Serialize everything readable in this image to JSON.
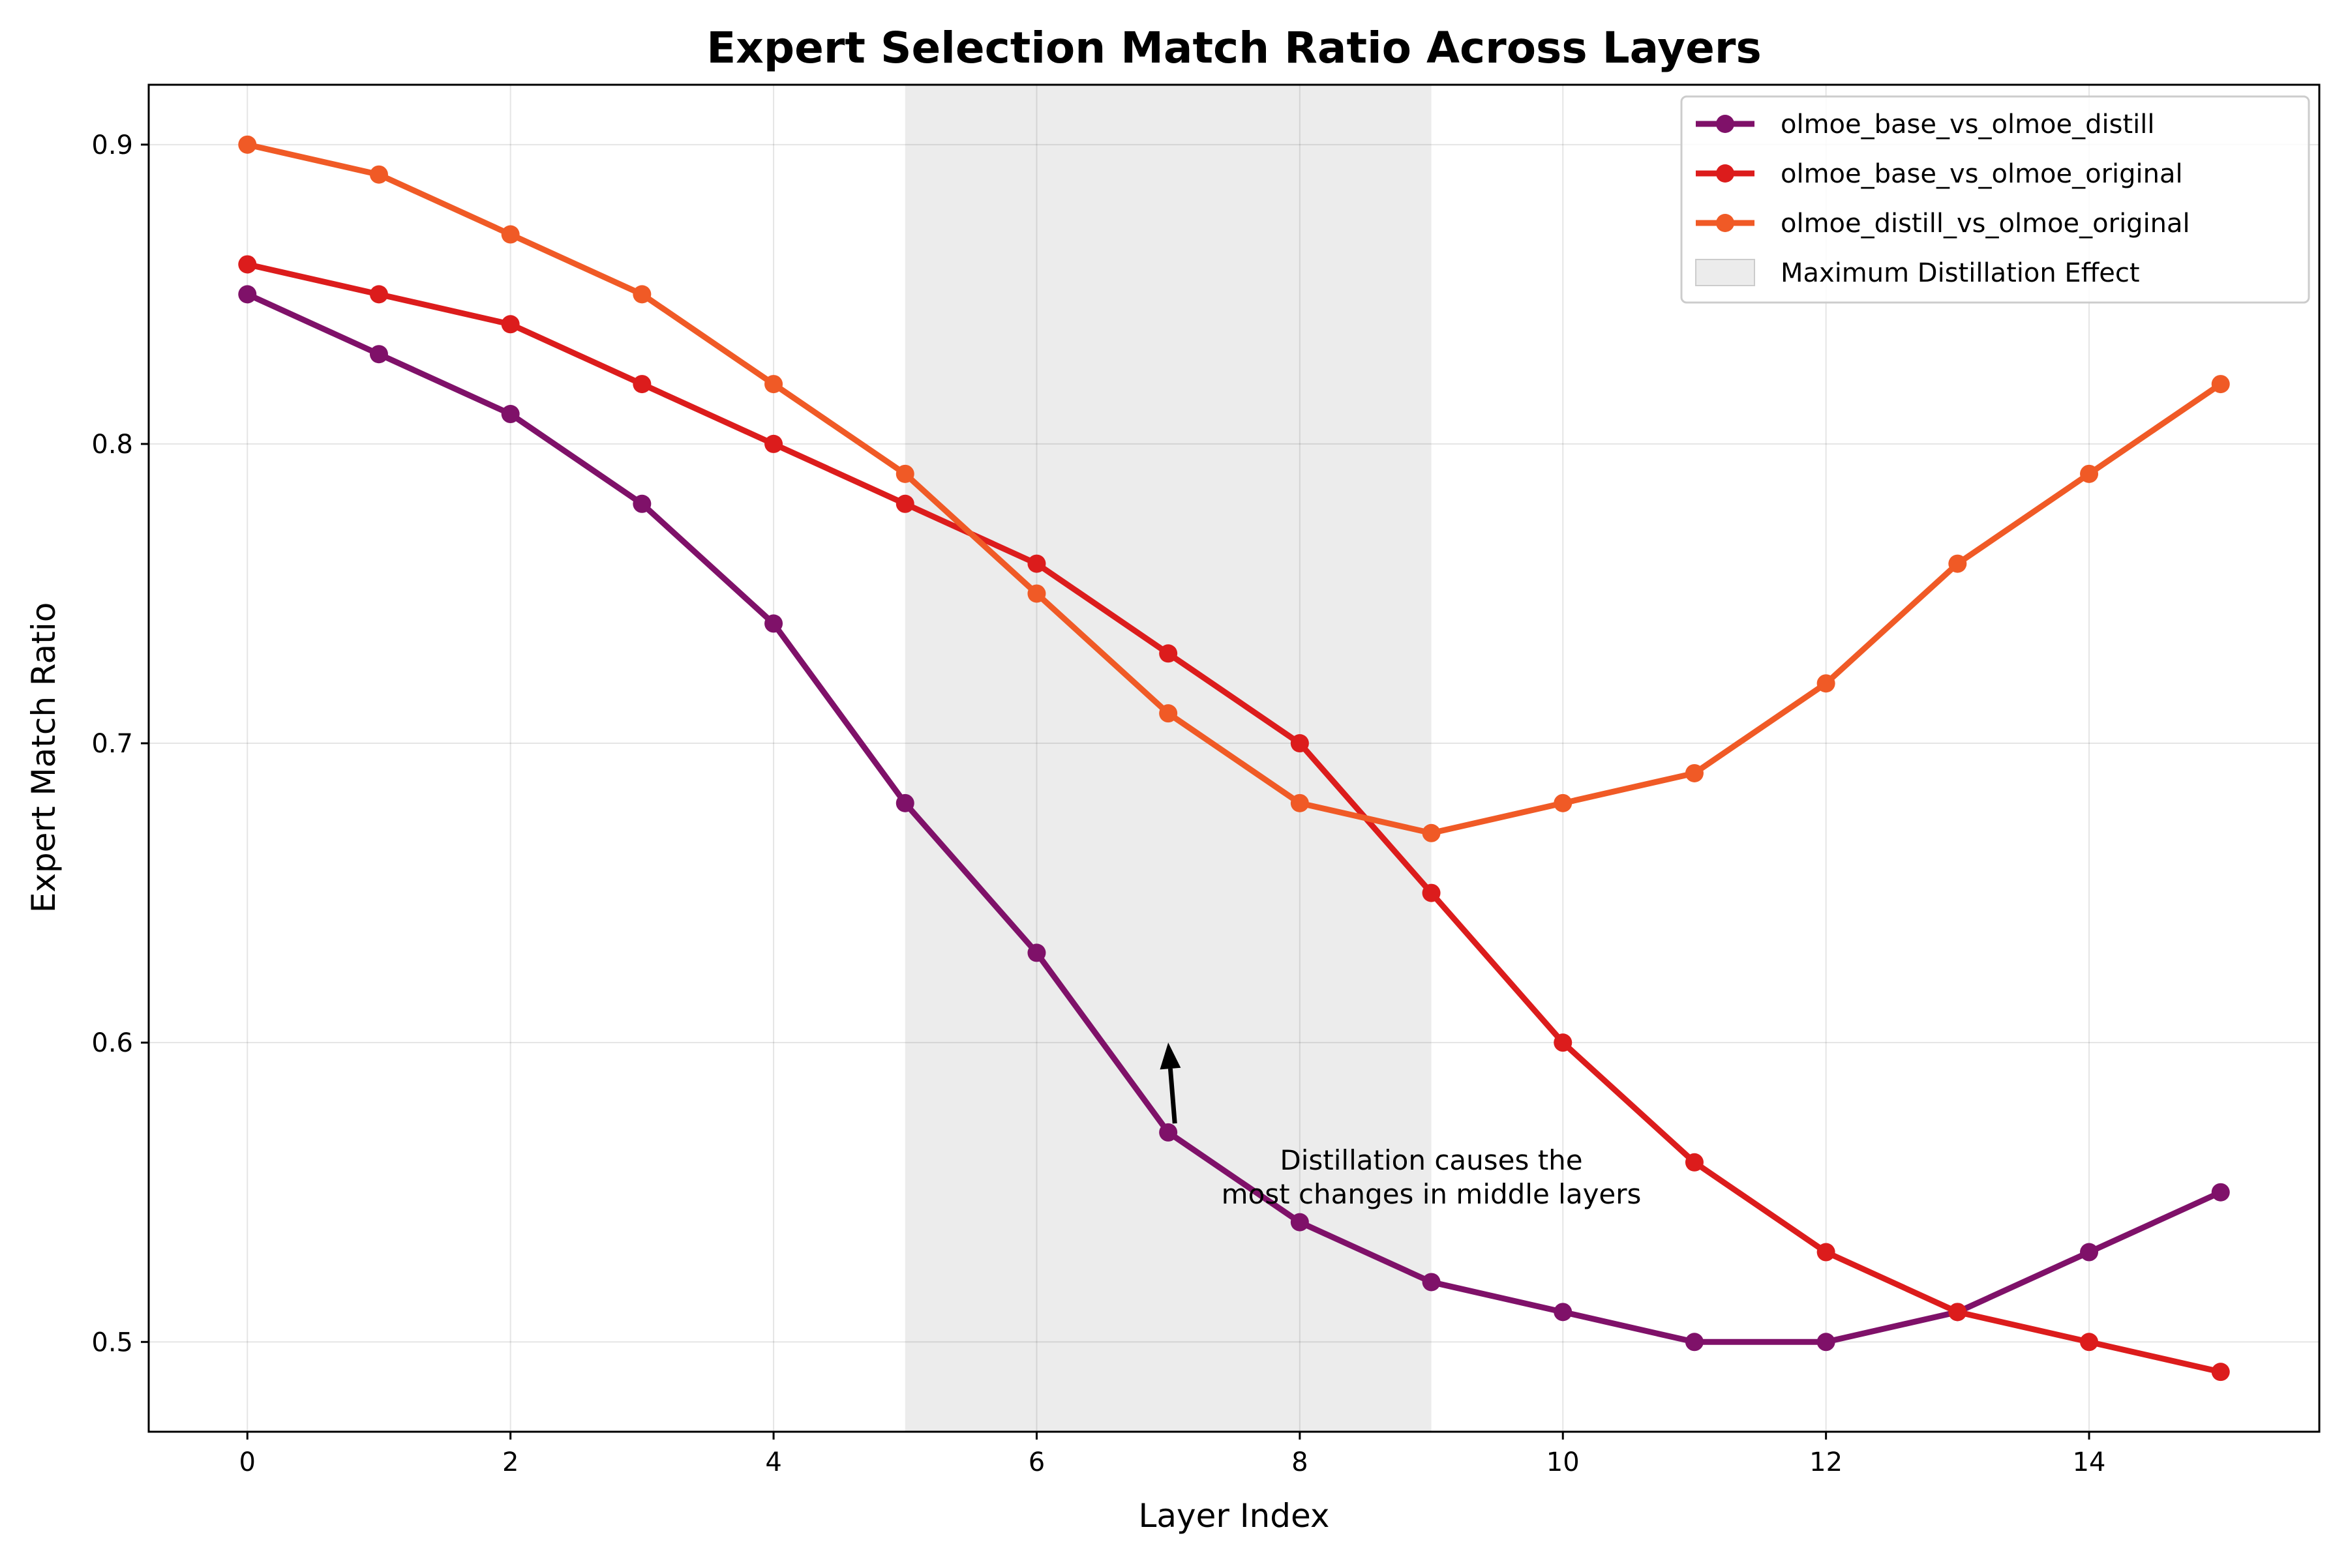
{
  "chart_data": {
    "type": "line",
    "title": "Expert Selection Match Ratio Across Layers",
    "xlabel": "Layer Index",
    "ylabel": "Expert Match Ratio",
    "x": [
      0,
      1,
      2,
      3,
      4,
      5,
      6,
      7,
      8,
      9,
      10,
      11,
      12,
      13,
      14,
      15
    ],
    "xlim": [
      -0.75,
      15.75
    ],
    "ylim": [
      0.47,
      0.92
    ],
    "xticks": [
      0,
      2,
      4,
      6,
      8,
      10,
      12,
      14
    ],
    "yticks": [
      0.5,
      0.6,
      0.7,
      0.8,
      0.9
    ],
    "ytick_labels": [
      "0.5",
      "0.6",
      "0.7",
      "0.8",
      "0.9"
    ],
    "grid": true,
    "legend_position": "top-right",
    "series": [
      {
        "name": "olmoe_base_vs_olmoe_distill",
        "color": "#7f1169",
        "values": [
          0.85,
          0.83,
          0.81,
          0.78,
          0.74,
          0.68,
          0.63,
          0.57,
          0.54,
          0.52,
          0.51,
          0.5,
          0.5,
          0.51,
          0.53,
          0.55
        ]
      },
      {
        "name": "olmoe_base_vs_olmoe_original",
        "color": "#dc1c1c",
        "values": [
          0.86,
          0.85,
          0.84,
          0.82,
          0.8,
          0.78,
          0.76,
          0.73,
          0.7,
          0.65,
          0.6,
          0.56,
          0.53,
          0.51,
          0.5,
          0.49
        ]
      },
      {
        "name": "olmoe_distill_vs_olmoe_original",
        "color": "#f05a26",
        "values": [
          0.9,
          0.89,
          0.87,
          0.85,
          0.82,
          0.79,
          0.75,
          0.71,
          0.68,
          0.67,
          0.68,
          0.69,
          0.72,
          0.76,
          0.79,
          0.82
        ]
      }
    ],
    "shaded_region": {
      "name": "Maximum Distillation Effect",
      "x_start": 5,
      "x_end": 9,
      "color": "#e0e0e0"
    },
    "annotation": {
      "lines": [
        "Distillation causes the",
        "most changes in middle layers"
      ],
      "text_x": 9.0,
      "text_y": 0.555,
      "arrow_from": [
        7.05,
        0.573
      ],
      "arrow_to": [
        7.0,
        0.6
      ]
    }
  }
}
